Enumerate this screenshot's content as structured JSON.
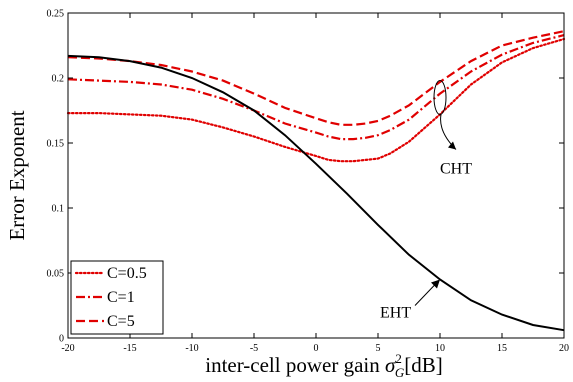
{
  "chart_data": {
    "type": "line",
    "xlabel": "inter-cell power gain σ_G^2[dB]",
    "xlabel_parts": {
      "main": "inter-cell power gain ",
      "sigma": "σ",
      "sub": "G",
      "sup": "2",
      "unit": "[dB]"
    },
    "ylabel": "Error Exponent",
    "xlim": [
      -20,
      20
    ],
    "ylim": [
      0,
      0.25
    ],
    "x_ticks": [
      "-20",
      "-15",
      "-10",
      "-5",
      "0",
      "5",
      "10",
      "15",
      "20"
    ],
    "y_ticks": [
      "0",
      "0.05",
      "0.1",
      "0.15",
      "0.2",
      "0.25"
    ],
    "grid": false,
    "legend_position": "bottom-left",
    "series": [
      {
        "name": "C=0.5",
        "color": "#e00000",
        "style": "dotted",
        "x": [
          -20,
          -17.5,
          -15,
          -12.5,
          -10,
          -7.5,
          -5,
          -2.5,
          0,
          1,
          2,
          3,
          4,
          5,
          6,
          7.5,
          10,
          12.5,
          15,
          17.5,
          20
        ],
        "y": [
          0.173,
          0.173,
          0.172,
          0.171,
          0.168,
          0.162,
          0.155,
          0.147,
          0.14,
          0.137,
          0.136,
          0.136,
          0.137,
          0.138,
          0.142,
          0.151,
          0.172,
          0.195,
          0.212,
          0.223,
          0.23
        ]
      },
      {
        "name": "C=1",
        "color": "#e00000",
        "style": "dashdot",
        "x": [
          -20,
          -17.5,
          -15,
          -12.5,
          -10,
          -7.5,
          -5,
          -2.5,
          0,
          1,
          2,
          3,
          4,
          5,
          6,
          7.5,
          10,
          12.5,
          15,
          17.5,
          20
        ],
        "y": [
          0.199,
          0.198,
          0.197,
          0.195,
          0.191,
          0.184,
          0.175,
          0.165,
          0.158,
          0.155,
          0.153,
          0.153,
          0.154,
          0.156,
          0.16,
          0.168,
          0.188,
          0.205,
          0.218,
          0.227,
          0.233
        ]
      },
      {
        "name": "C=5",
        "color": "#e00000",
        "style": "dashed",
        "x": [
          -20,
          -17.5,
          -15,
          -12.5,
          -10,
          -7.5,
          -5,
          -2.5,
          0,
          1,
          2,
          3,
          4,
          5,
          6,
          7.5,
          10,
          12.5,
          15,
          17.5,
          20
        ],
        "y": [
          0.216,
          0.215,
          0.213,
          0.21,
          0.205,
          0.198,
          0.188,
          0.177,
          0.169,
          0.166,
          0.164,
          0.164,
          0.165,
          0.167,
          0.171,
          0.179,
          0.197,
          0.213,
          0.225,
          0.231,
          0.236
        ]
      },
      {
        "name": "",
        "color": "#000000",
        "style": "solid",
        "x": [
          -20,
          -17.5,
          -15,
          -12.5,
          -10,
          -7.5,
          -5,
          -2.5,
          0,
          2.5,
          5,
          7.5,
          10,
          12.5,
          15,
          17.5,
          20
        ],
        "y": [
          0.217,
          0.216,
          0.213,
          0.208,
          0.2,
          0.189,
          0.175,
          0.156,
          0.134,
          0.111,
          0.087,
          0.064,
          0.045,
          0.029,
          0.018,
          0.01,
          0.006
        ]
      }
    ],
    "annotations": [
      {
        "text": "CHT",
        "target_x": 10,
        "target_y": 0.185
      },
      {
        "text": "EHT",
        "target_x": 10,
        "target_y": 0.045
      }
    ]
  }
}
